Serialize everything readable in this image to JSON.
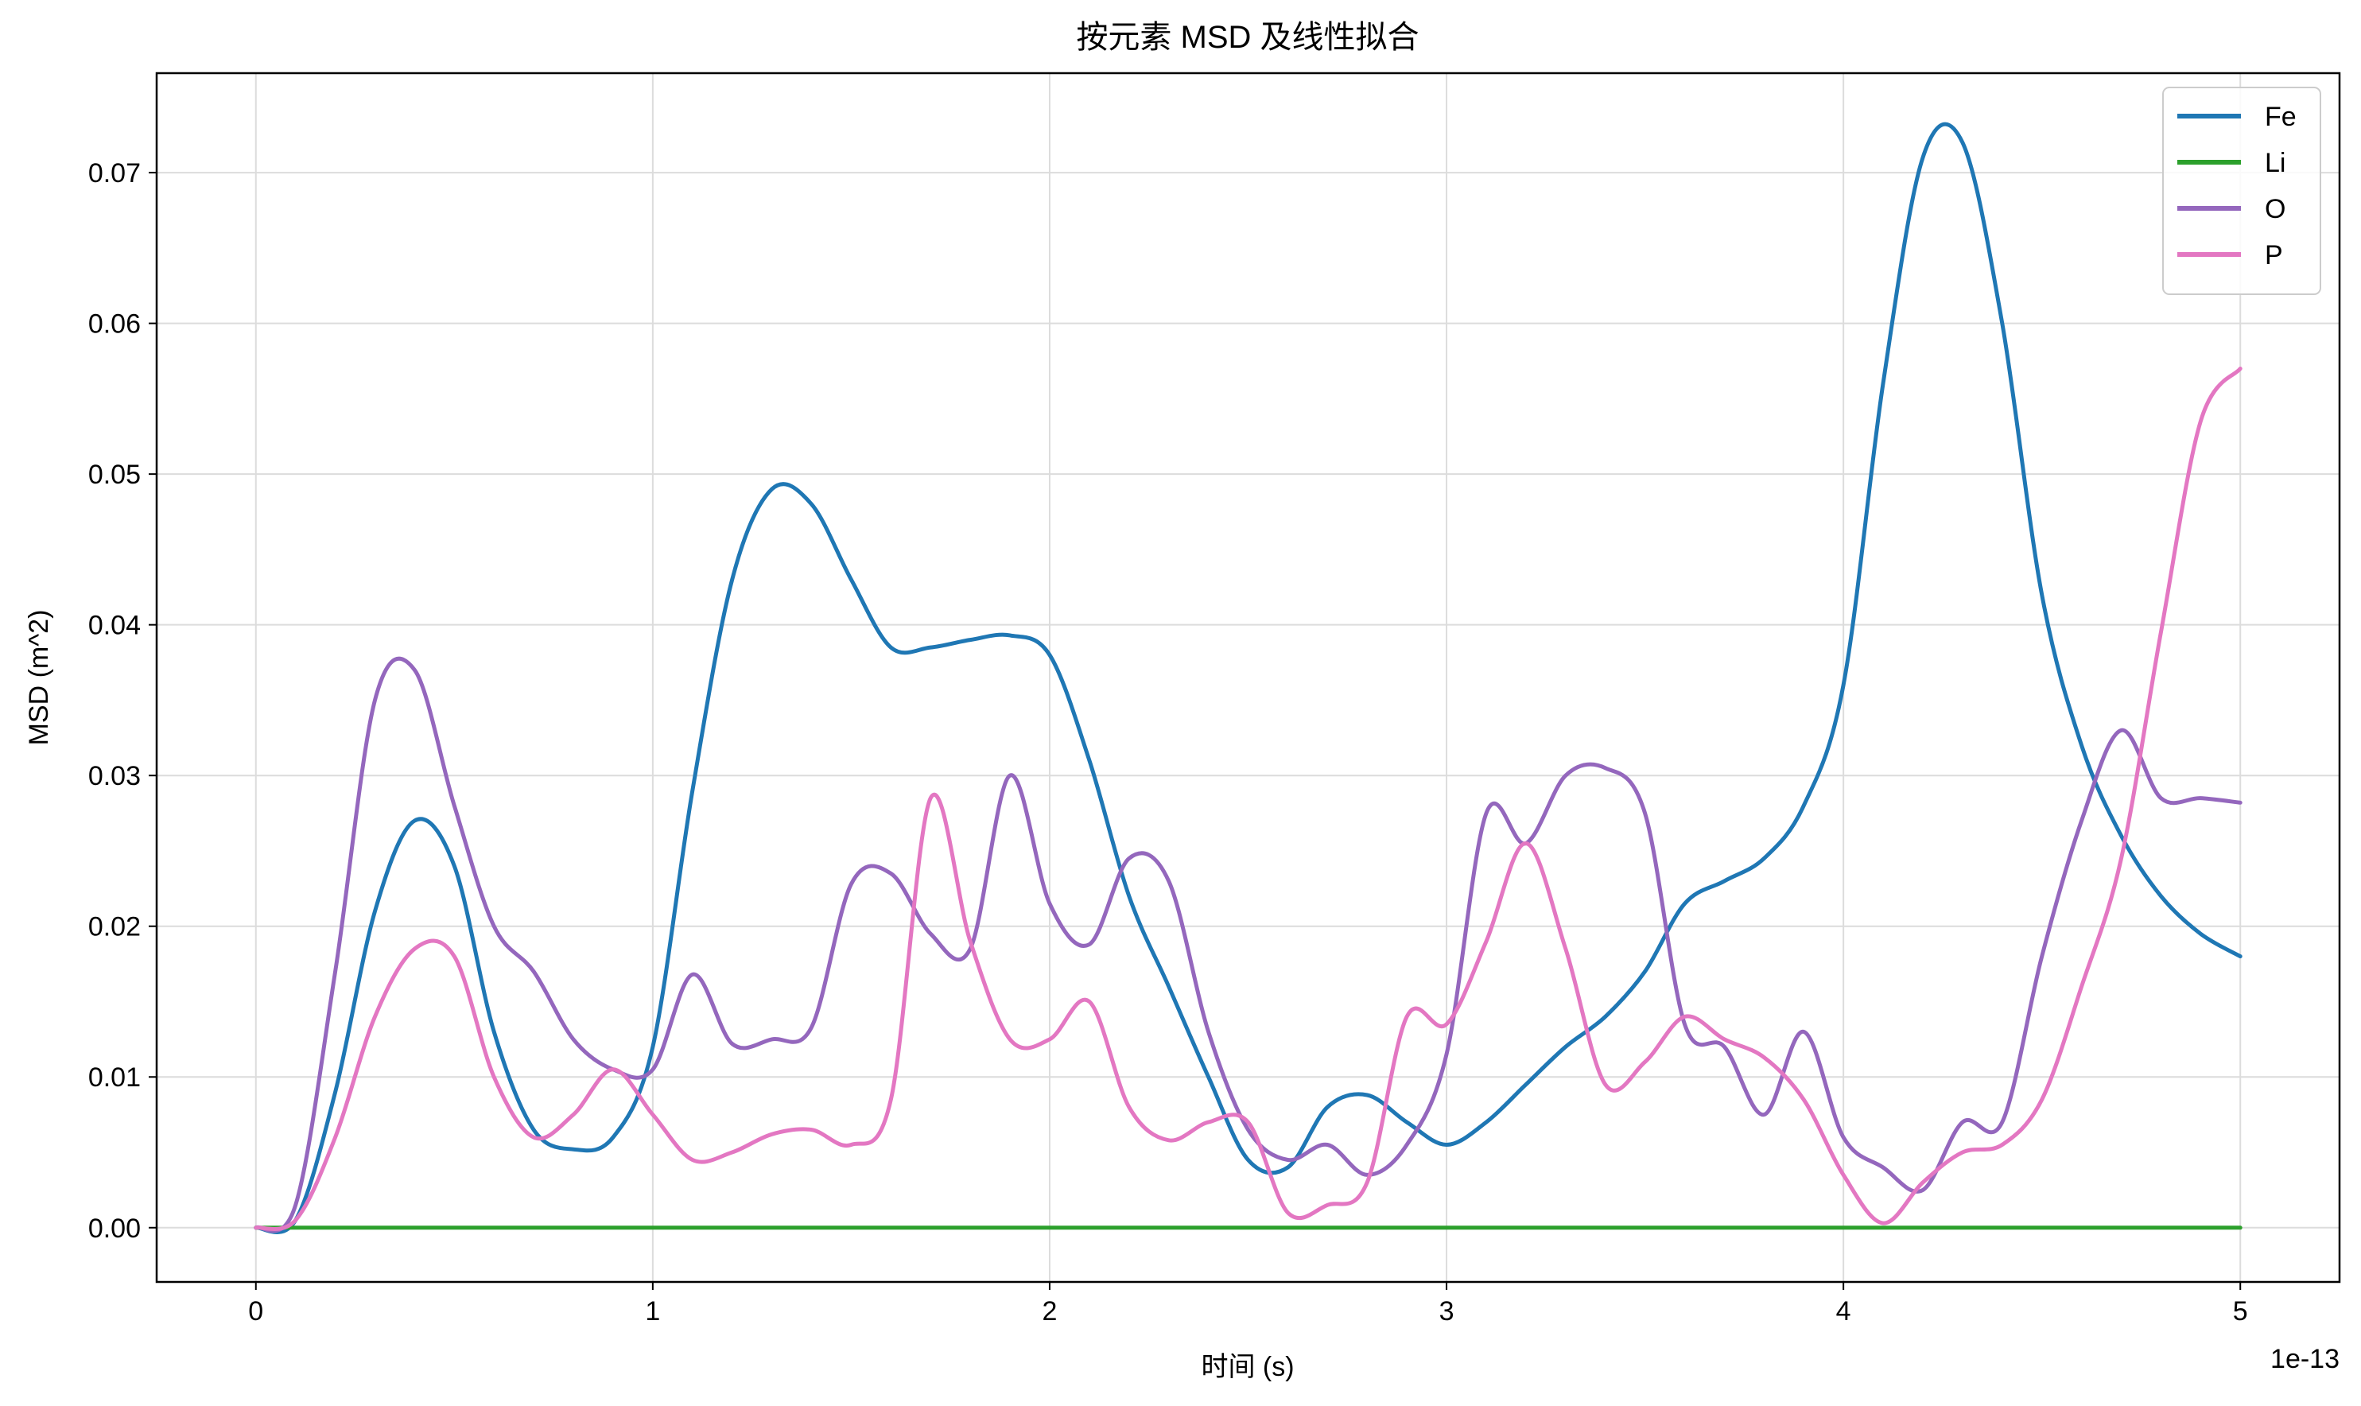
{
  "chart_data": {
    "type": "line",
    "title": "按元素 MSD 及线性拟合",
    "xlabel": "时间 (s)",
    "ylabel": "MSD (m^2)",
    "x_offset_text": "1e-13",
    "xlim": [
      -0.25,
      5.25
    ],
    "ylim": [
      -0.0036,
      0.0766
    ],
    "x_ticks": [
      0,
      1,
      2,
      3,
      4,
      5
    ],
    "x_tick_labels": [
      "0",
      "1",
      "2",
      "3",
      "4",
      "5"
    ],
    "y_ticks": [
      0.0,
      0.01,
      0.02,
      0.03,
      0.04,
      0.05,
      0.06,
      0.07
    ],
    "y_tick_labels": [
      "0.00",
      "0.01",
      "0.02",
      "0.03",
      "0.04",
      "0.05",
      "0.06",
      "0.07"
    ],
    "grid": true,
    "legend_position": "top-right",
    "x": [
      0,
      0.1,
      0.2,
      0.3,
      0.4,
      0.5,
      0.6,
      0.7,
      0.8,
      0.9,
      1.0,
      1.1,
      1.2,
      1.3,
      1.4,
      1.5,
      1.6,
      1.7,
      1.8,
      1.9,
      2.0,
      2.1,
      2.2,
      2.3,
      2.4,
      2.5,
      2.6,
      2.7,
      2.8,
      2.9,
      3.0,
      3.1,
      3.2,
      3.3,
      3.4,
      3.5,
      3.6,
      3.7,
      3.8,
      3.9,
      4.0,
      4.1,
      4.2,
      4.3,
      4.4,
      4.5,
      4.6,
      4.7,
      4.8,
      4.9,
      5.0
    ],
    "series": [
      {
        "name": "Fe",
        "color": "#1f77b4",
        "values": [
          0,
          0.0005,
          0.009,
          0.021,
          0.027,
          0.024,
          0.013,
          0.0065,
          0.0052,
          0.006,
          0.012,
          0.029,
          0.043,
          0.049,
          0.048,
          0.043,
          0.0385,
          0.0385,
          0.039,
          0.0393,
          0.038,
          0.031,
          0.022,
          0.016,
          0.01,
          0.0045,
          0.004,
          0.008,
          0.0088,
          0.007,
          0.0055,
          0.007,
          0.0095,
          0.012,
          0.014,
          0.017,
          0.0215,
          0.023,
          0.0245,
          0.028,
          0.036,
          0.056,
          0.071,
          0.072,
          0.06,
          0.042,
          0.032,
          0.026,
          0.022,
          0.0195,
          0.018
        ]
      },
      {
        "name": "Li",
        "color": "#2ca02c",
        "values": [
          0,
          0,
          0,
          0,
          0,
          0,
          0,
          0,
          0,
          0,
          0,
          0,
          0,
          0,
          0,
          0,
          0,
          0,
          0,
          0,
          0,
          0,
          0,
          0,
          0,
          0,
          0,
          0,
          0,
          0,
          0,
          0,
          0,
          0,
          0,
          0,
          0,
          0,
          0,
          0,
          0,
          0,
          0,
          0,
          0,
          0,
          0,
          0,
          0,
          0,
          0
        ]
      },
      {
        "name": "O",
        "color": "#9467bd",
        "values": [
          0,
          0.0015,
          0.017,
          0.035,
          0.037,
          0.028,
          0.02,
          0.017,
          0.0125,
          0.0105,
          0.0105,
          0.0168,
          0.0122,
          0.0125,
          0.0133,
          0.0228,
          0.0235,
          0.0195,
          0.0185,
          0.03,
          0.0215,
          0.0188,
          0.0245,
          0.023,
          0.013,
          0.0065,
          0.0045,
          0.0055,
          0.0035,
          0.0055,
          0.0115,
          0.0275,
          0.0255,
          0.03,
          0.0305,
          0.0275,
          0.0135,
          0.012,
          0.0075,
          0.013,
          0.006,
          0.004,
          0.0025,
          0.007,
          0.007,
          0.018,
          0.027,
          0.033,
          0.0285,
          0.0285,
          0.0282
        ]
      },
      {
        "name": "P",
        "color": "#e377c2",
        "values": [
          0,
          0.0005,
          0.006,
          0.014,
          0.0185,
          0.018,
          0.01,
          0.006,
          0.0075,
          0.0105,
          0.0075,
          0.0045,
          0.005,
          0.0062,
          0.0065,
          0.0055,
          0.0085,
          0.0285,
          0.019,
          0.0125,
          0.0125,
          0.015,
          0.008,
          0.0058,
          0.007,
          0.007,
          0.001,
          0.0015,
          0.003,
          0.014,
          0.0135,
          0.019,
          0.0255,
          0.0185,
          0.0095,
          0.011,
          0.014,
          0.0125,
          0.0113,
          0.0085,
          0.0035,
          0.0003,
          0.003,
          0.005,
          0.0055,
          0.0085,
          0.016,
          0.0245,
          0.0395,
          0.0535,
          0.057
        ]
      }
    ]
  }
}
